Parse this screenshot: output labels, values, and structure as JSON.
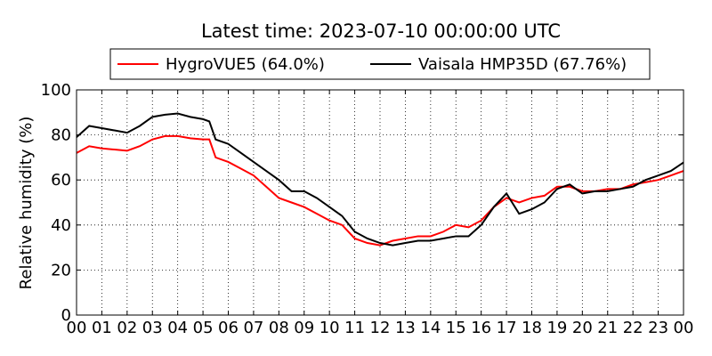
{
  "chart_data": {
    "type": "line",
    "title": "Latest time: 2023-07-10 00:00:00 UTC",
    "ylabel": "Relative humidity (%)",
    "x": [
      0,
      0.5,
      1,
      1.5,
      2,
      2.5,
      3,
      3.5,
      4,
      4.5,
      5,
      5.25,
      5.5,
      6,
      6.5,
      7,
      7.5,
      8,
      8.5,
      9,
      9.5,
      10,
      10.5,
      11,
      11.5,
      12,
      12.5,
      13,
      13.5,
      14,
      14.5,
      15,
      15.5,
      16,
      16.5,
      17,
      17.5,
      18,
      18.5,
      19,
      19.5,
      20,
      20.5,
      21,
      21.5,
      22,
      22.5,
      23,
      23.5,
      24
    ],
    "series": [
      {
        "name": "HygroVUE5 (64.0%)",
        "color": "#ff0000",
        "values": [
          72,
          75,
          74,
          73.5,
          73,
          75,
          78,
          79.5,
          79.5,
          78.5,
          78,
          78,
          70,
          68,
          65,
          62,
          57,
          52,
          50,
          48,
          45,
          42,
          40,
          34,
          32,
          31,
          33,
          34,
          35,
          35,
          37,
          40,
          39,
          42,
          48,
          52,
          50,
          52,
          53,
          57,
          57,
          55,
          55,
          56,
          56,
          58,
          59,
          60,
          62,
          64
        ]
      },
      {
        "name": "Vaisala HMP35D (67.76%)",
        "color": "#000000",
        "values": [
          79,
          84,
          83,
          82,
          81,
          84,
          88,
          89,
          89.5,
          88,
          87,
          86,
          78,
          76,
          72,
          68,
          64,
          60,
          55,
          55,
          52,
          48,
          44,
          37,
          34,
          32,
          31,
          32,
          33,
          33,
          34,
          35,
          35,
          40,
          48,
          54,
          45,
          47,
          50,
          56,
          58,
          54,
          55,
          55,
          56,
          57,
          60,
          62,
          64,
          67.76
        ]
      }
    ],
    "xlim": [
      0,
      24
    ],
    "xticks": [
      {
        "value": 0,
        "label": "00"
      },
      {
        "value": 1,
        "label": "01"
      },
      {
        "value": 2,
        "label": "02"
      },
      {
        "value": 3,
        "label": "03"
      },
      {
        "value": 4,
        "label": "04"
      },
      {
        "value": 5,
        "label": "05"
      },
      {
        "value": 6,
        "label": "06"
      },
      {
        "value": 7,
        "label": "07"
      },
      {
        "value": 8,
        "label": "08"
      },
      {
        "value": 9,
        "label": "09"
      },
      {
        "value": 10,
        "label": "10"
      },
      {
        "value": 11,
        "label": "11"
      },
      {
        "value": 12,
        "label": "12"
      },
      {
        "value": 13,
        "label": "13"
      },
      {
        "value": 14,
        "label": "14"
      },
      {
        "value": 15,
        "label": "15"
      },
      {
        "value": 16,
        "label": "16"
      },
      {
        "value": 17,
        "label": "17"
      },
      {
        "value": 18,
        "label": "18"
      },
      {
        "value": 19,
        "label": "19"
      },
      {
        "value": 20,
        "label": "20"
      },
      {
        "value": 21,
        "label": "21"
      },
      {
        "value": 22,
        "label": "22"
      },
      {
        "value": 23,
        "label": "23"
      },
      {
        "value": 24,
        "label": "00"
      }
    ],
    "ylim": [
      0,
      100
    ],
    "yticks": [
      0,
      20,
      40,
      60,
      80,
      100
    ],
    "grid": true,
    "legend": "top"
  }
}
